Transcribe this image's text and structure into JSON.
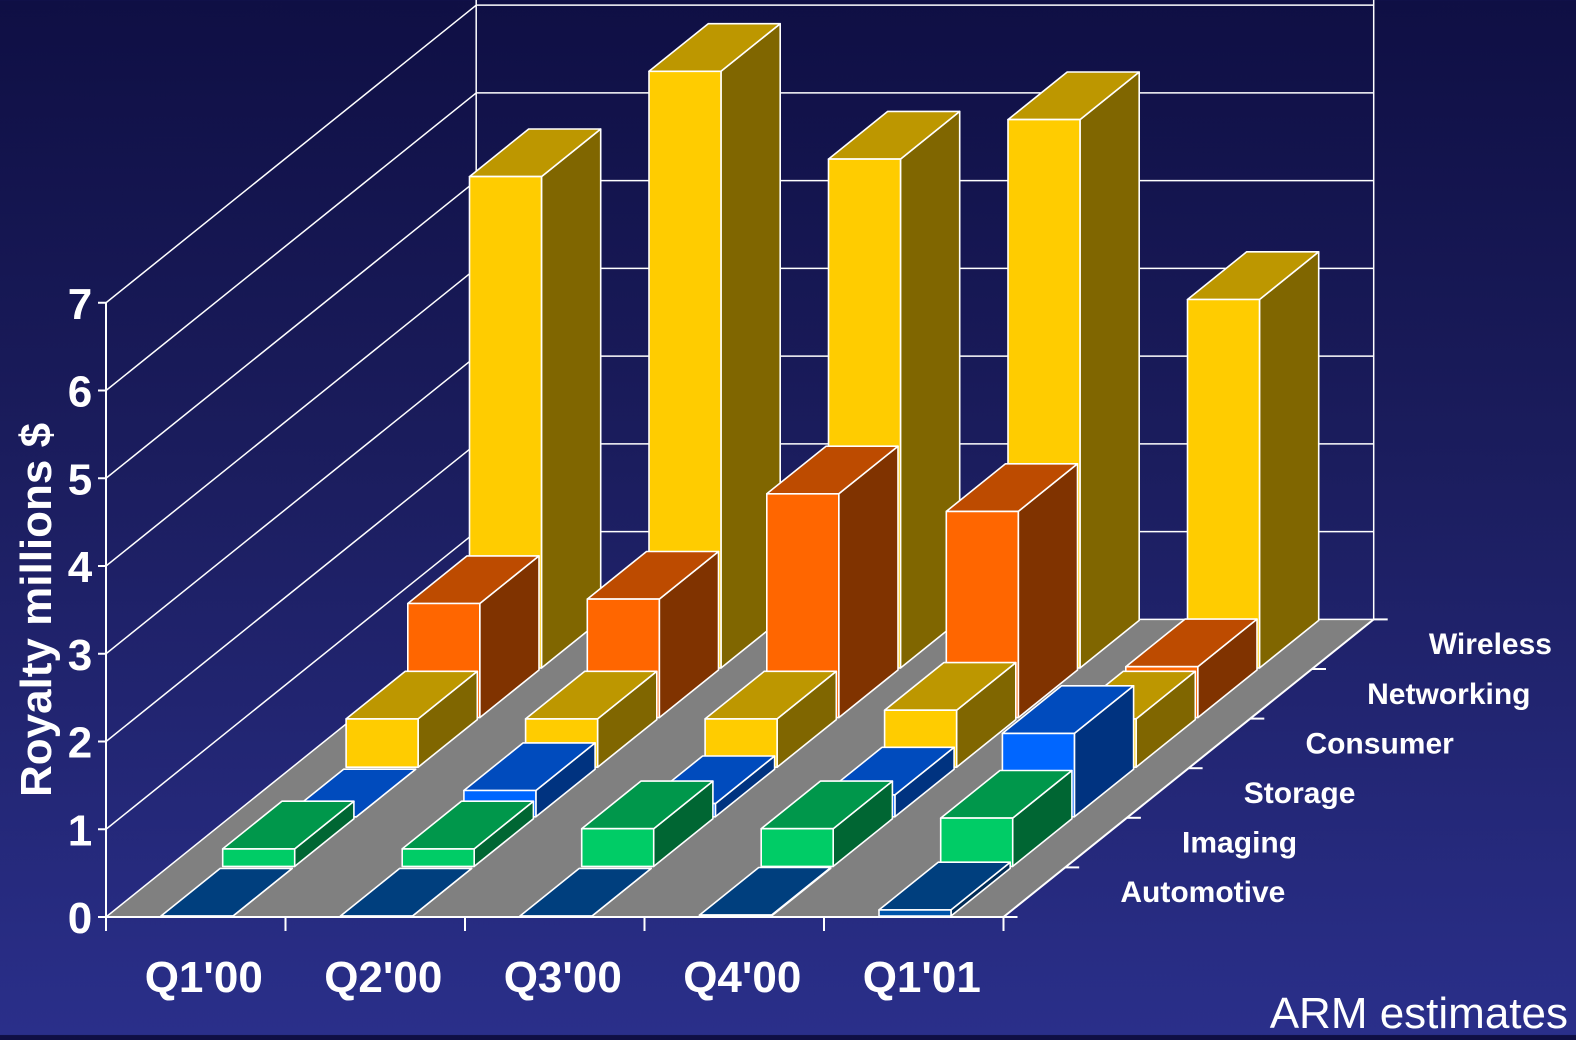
{
  "source_note": "ARM estimates",
  "colors": {
    "Wireless": "#ffcc00",
    "Networking": "#ff6600",
    "Consumer": "#ffcc00",
    "Storage": "#0066ff",
    "Imaging": "#00cc66",
    "Automotive": "#0055aa",
    "floor": "#808080",
    "axis": "#ffffff"
  },
  "chart_data": {
    "type": "bar3d",
    "title": "",
    "xlabel": "",
    "ylabel": "Royalty millions $",
    "ylim": [
      0,
      7
    ],
    "yticks": [
      0,
      1,
      2,
      3,
      4,
      5,
      6,
      7
    ],
    "grid": true,
    "categories": [
      "Q1'00",
      "Q2'00",
      "Q3'00",
      "Q4'00",
      "Q1'01"
    ],
    "series": [
      {
        "name": "Automotive",
        "values": [
          0,
          0,
          0,
          0.01,
          0.07
        ]
      },
      {
        "name": "Imaging",
        "values": [
          0.2,
          0.2,
          0.43,
          0.43,
          0.55
        ]
      },
      {
        "name": "Storage",
        "values": [
          0,
          0.3,
          0.15,
          0.25,
          0.95
        ]
      },
      {
        "name": "Consumer",
        "values": [
          0.55,
          0.55,
          0.55,
          0.65,
          0.55
        ]
      },
      {
        "name": "Networking",
        "values": [
          1.3,
          1.35,
          2.55,
          2.35,
          0.58
        ]
      },
      {
        "name": "Wireless",
        "values": [
          5.6,
          6.8,
          5.8,
          6.25,
          4.2
        ]
      }
    ]
  }
}
